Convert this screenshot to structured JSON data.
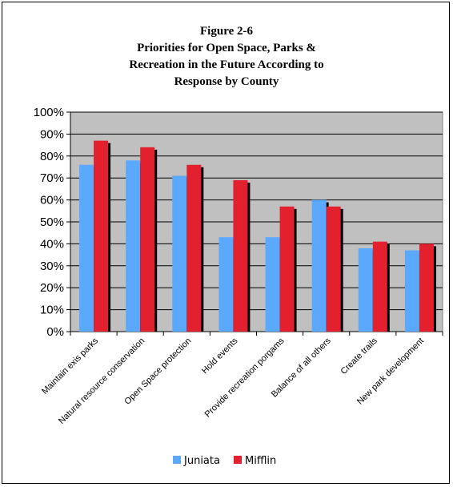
{
  "chart_data": {
    "type": "bar",
    "title_lines": [
      "Figure 2-6",
      "Priorities for Open Space, Parks &",
      "Recreation in the Future According to",
      "Response by County"
    ],
    "categories": [
      "Maintain exis parks",
      "Natural resource conservation",
      "Open Space protection",
      "Hold events",
      "Provide recreation porgams",
      "Balance of all others",
      "Create trails",
      "New park development"
    ],
    "series": [
      {
        "name": "Juniata",
        "color": "#5aa9ff",
        "values": [
          76,
          78,
          71,
          43,
          43,
          60,
          38,
          37
        ]
      },
      {
        "name": "Mifflin",
        "color": "#e2202e",
        "values": [
          87,
          84,
          76,
          69,
          57,
          57,
          41,
          40
        ]
      }
    ],
    "y_ticks": [
      "0%",
      "10%",
      "20%",
      "30%",
      "40%",
      "50%",
      "60%",
      "70%",
      "80%",
      "90%",
      "100%"
    ],
    "ylim": [
      0,
      100
    ],
    "grid": true,
    "plot_background": "#c0c0c0",
    "legend_position": "bottom"
  }
}
